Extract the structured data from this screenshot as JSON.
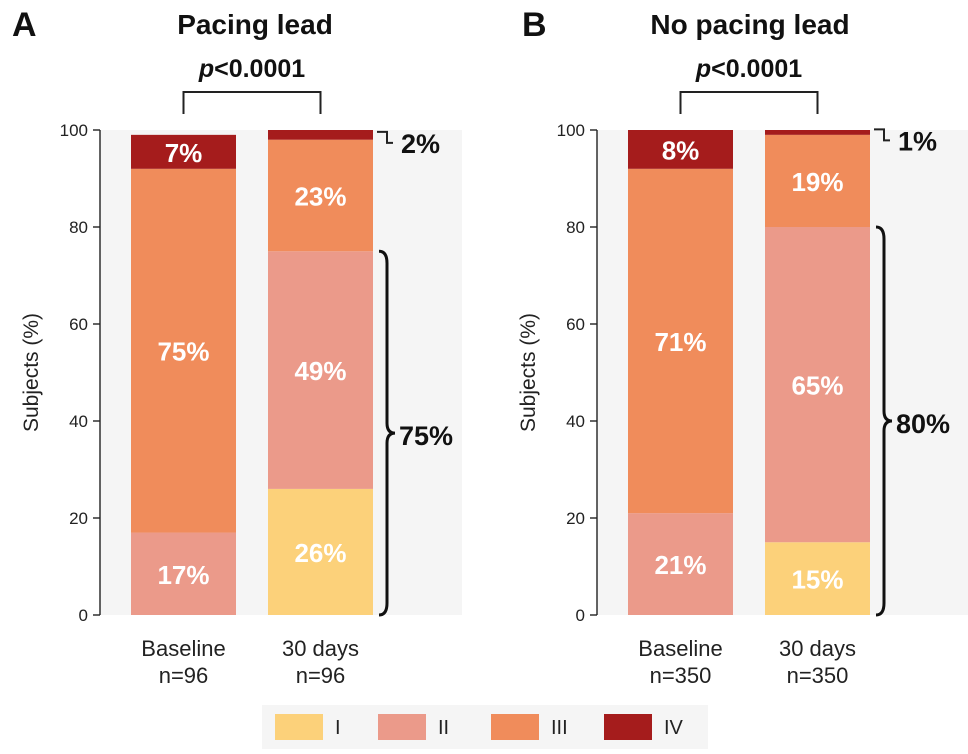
{
  "chart_data": [
    {
      "type": "bar",
      "stacked": true,
      "panel": "A",
      "title": "Pacing lead",
      "pvalue_prefix": "p",
      "pvalue_rest": "<0.0001",
      "ylabel": "Subjects (%)",
      "ylim": [
        0,
        100
      ],
      "yticks": [
        "0",
        "20",
        "40",
        "60",
        "80",
        "100"
      ],
      "categories": [
        {
          "line1": "Baseline",
          "line2": "n=96"
        },
        {
          "line1": "30 days",
          "line2": "n=96"
        }
      ],
      "series": [
        {
          "name": "I",
          "values": [
            0,
            26
          ],
          "labels": [
            "",
            "26%"
          ]
        },
        {
          "name": "II",
          "values": [
            17,
            49
          ],
          "labels": [
            "17%",
            "49%"
          ]
        },
        {
          "name": "III",
          "values": [
            75,
            23
          ],
          "labels": [
            "75%",
            "23%"
          ]
        },
        {
          "name": "IV",
          "values": [
            7,
            2
          ],
          "labels": [
            "7%",
            ""
          ]
        }
      ],
      "callout_top": "2%",
      "brace_label": "75%"
    },
    {
      "type": "bar",
      "stacked": true,
      "panel": "B",
      "title": "No pacing lead",
      "pvalue_prefix": "p",
      "pvalue_rest": "<0.0001",
      "ylabel": "Subjects (%)",
      "ylim": [
        0,
        100
      ],
      "yticks": [
        "0",
        "20",
        "40",
        "60",
        "80",
        "100"
      ],
      "categories": [
        {
          "line1": "Baseline",
          "line2": "n=350"
        },
        {
          "line1": "30 days",
          "line2": "n=350"
        }
      ],
      "series": [
        {
          "name": "I",
          "values": [
            0,
            15
          ],
          "labels": [
            "",
            "15%"
          ]
        },
        {
          "name": "II",
          "values": [
            21,
            65
          ],
          "labels": [
            "21%",
            "65%"
          ]
        },
        {
          "name": "III",
          "values": [
            71,
            19
          ],
          "labels": [
            "71%",
            "19%"
          ]
        },
        {
          "name": "IV",
          "values": [
            8,
            1
          ],
          "labels": [
            "8%",
            ""
          ]
        }
      ],
      "callout_top": "1%",
      "brace_label": "80%"
    }
  ],
  "legend": [
    {
      "name": "I",
      "color": "#fcd17a"
    },
    {
      "name": "II",
      "color": "#eb9a8a"
    },
    {
      "name": "III",
      "color": "#f08c5b"
    },
    {
      "name": "IV",
      "color": "#a51c1c"
    }
  ]
}
